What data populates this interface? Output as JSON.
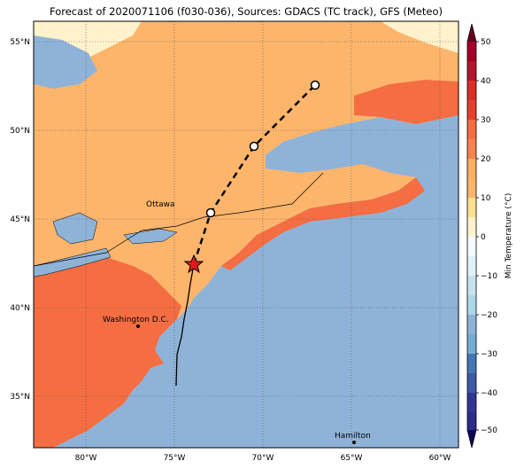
{
  "title": "Forecast of 2020071106 (f030-036), Sources: GDACS (TC track), GFS (Meteo)",
  "lat_ticks": [
    "55°N",
    "50°N",
    "45°N",
    "40°N",
    "35°N"
  ],
  "lon_ticks": [
    "80°W",
    "75°W",
    "70°W",
    "65°W",
    "60°W"
  ],
  "places": [
    {
      "name": "Ottawa"
    },
    {
      "name": "Washington D.C."
    },
    {
      "name": "Hamilton"
    }
  ],
  "colorbar": {
    "label": "Min Temperature (°C)",
    "ticks": [
      "50",
      "40",
      "30",
      "20",
      "10",
      "0",
      "−10",
      "−20",
      "−30",
      "−40",
      "−50"
    ]
  },
  "colors": {
    "water": "#8fb3d8",
    "band_0_10": "#fff2cc",
    "band_10_20": "#fdb56c",
    "band_20_30": "#f46d43",
    "band_30_40": "#d73027"
  },
  "storm_current_marker": "star-icon"
}
